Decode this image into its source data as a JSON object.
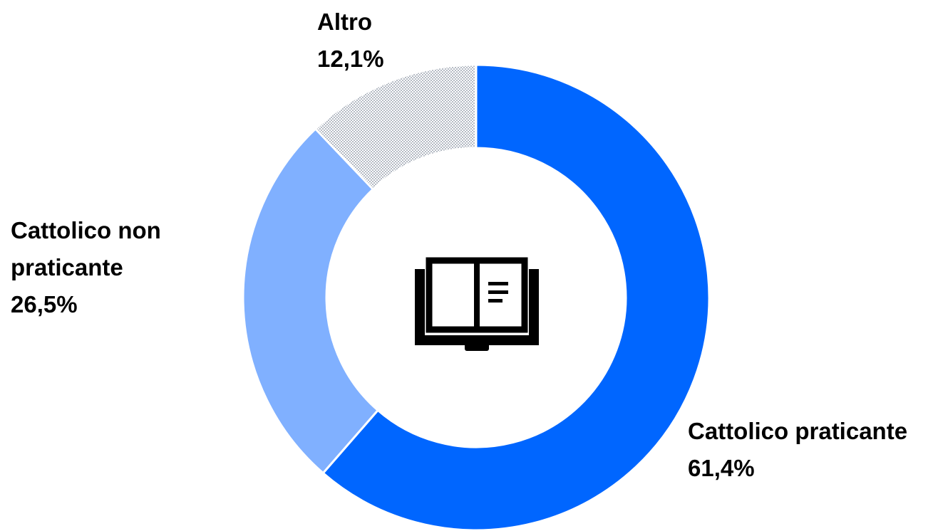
{
  "chart_data": {
    "type": "donut",
    "categories": [
      "Cattolico praticante",
      "Cattolico non praticante",
      "Altro"
    ],
    "values": [
      61.4,
      26.5,
      12.1
    ],
    "value_labels": [
      "61,4%",
      "26,5%",
      "12,1%"
    ],
    "colors": [
      "#0066ff",
      "#80b0ff",
      "#7f8a99"
    ],
    "patterns": [
      "solid",
      "solid",
      "dotted"
    ]
  }
}
